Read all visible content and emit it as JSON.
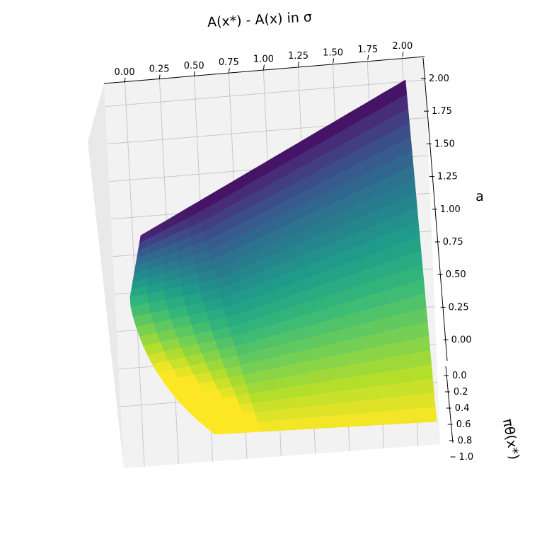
{
  "chart_data": {
    "type": "surface3d",
    "title": "A(x*) - A(x) in σ",
    "xlabel": "",
    "ylabel": "a",
    "zlabel": "πθ(x*)",
    "colormap": "viridis",
    "x_ticks": [
      "0.00",
      "0.25",
      "0.50",
      "0.75",
      "1.00",
      "1.25",
      "1.50",
      "1.75",
      "2.00"
    ],
    "y_ticks": [
      "2.00",
      "1.75",
      "1.50",
      "1.25",
      "1.00",
      "0.75",
      "0.50",
      "0.25",
      "0.00"
    ],
    "z_ticks": [
      "0.0",
      "0.2",
      "0.4",
      "0.6",
      "0.8",
      "1.0"
    ],
    "xlim": [
      0,
      2
    ],
    "ylim": [
      0,
      2
    ],
    "zlim": [
      0,
      1
    ],
    "grid": true,
    "surface": {
      "description_formula": "value ranges from 0 to 2",
      "x_range": [
        0,
        2
      ],
      "p_range": [
        0,
        1
      ],
      "value_range": [
        0,
        2
      ]
    }
  }
}
